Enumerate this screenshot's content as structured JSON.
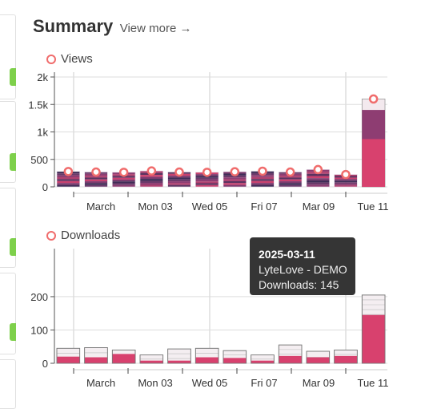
{
  "summary": {
    "title": "Summary",
    "view_more": "View more →"
  },
  "colors": {
    "views_dark": "#3f2d57",
    "views_mid": "#8e3d72",
    "accent": "#d8416e",
    "marker": "#f06c6c",
    "grid": "#dddddd"
  },
  "x_ticks": [
    "March",
    "Mon 03",
    "Wed 05",
    "Fri 07",
    "Mar 09",
    "Tue 11"
  ],
  "tooltip": {
    "date": "2025-03-11",
    "series_label": "LyteLove - DEMO",
    "value_label": "Downloads: 145"
  },
  "chart_data": [
    {
      "type": "bar",
      "legend": "Views",
      "y_tick_labels": [
        "0",
        "500",
        "1k",
        "1.5k",
        "2k"
      ],
      "ylim": [
        0,
        2000
      ],
      "categories": [
        "2025-02-28",
        "2025-03-01",
        "2025-03-02",
        "2025-03-03",
        "2025-03-04",
        "2025-03-05",
        "2025-03-06",
        "2025-03-07",
        "2025-03-08",
        "2025-03-09",
        "2025-03-10",
        "2025-03-11"
      ],
      "values": [
        280,
        270,
        265,
        290,
        270,
        265,
        275,
        285,
        270,
        315,
        225,
        1600
      ],
      "highlight": {
        "category": "2025-03-11",
        "value": 870
      },
      "stacked_style": "multi"
    },
    {
      "type": "bar",
      "legend": "Downloads",
      "y_tick_labels": [
        "0",
        "100",
        "200"
      ],
      "ylim": [
        0,
        260
      ],
      "categories": [
        "2025-02-28",
        "2025-03-01",
        "2025-03-02",
        "2025-03-03",
        "2025-03-04",
        "2025-03-05",
        "2025-03-06",
        "2025-03-07",
        "2025-03-08",
        "2025-03-09",
        "2025-03-10",
        "2025-03-11"
      ],
      "values": [
        45,
        47,
        40,
        25,
        43,
        45,
        38,
        25,
        55,
        36,
        40,
        205
      ],
      "highlight_values": [
        20,
        18,
        28,
        8,
        8,
        18,
        16,
        8,
        22,
        18,
        22,
        145
      ],
      "stacked_style": "outline"
    }
  ]
}
